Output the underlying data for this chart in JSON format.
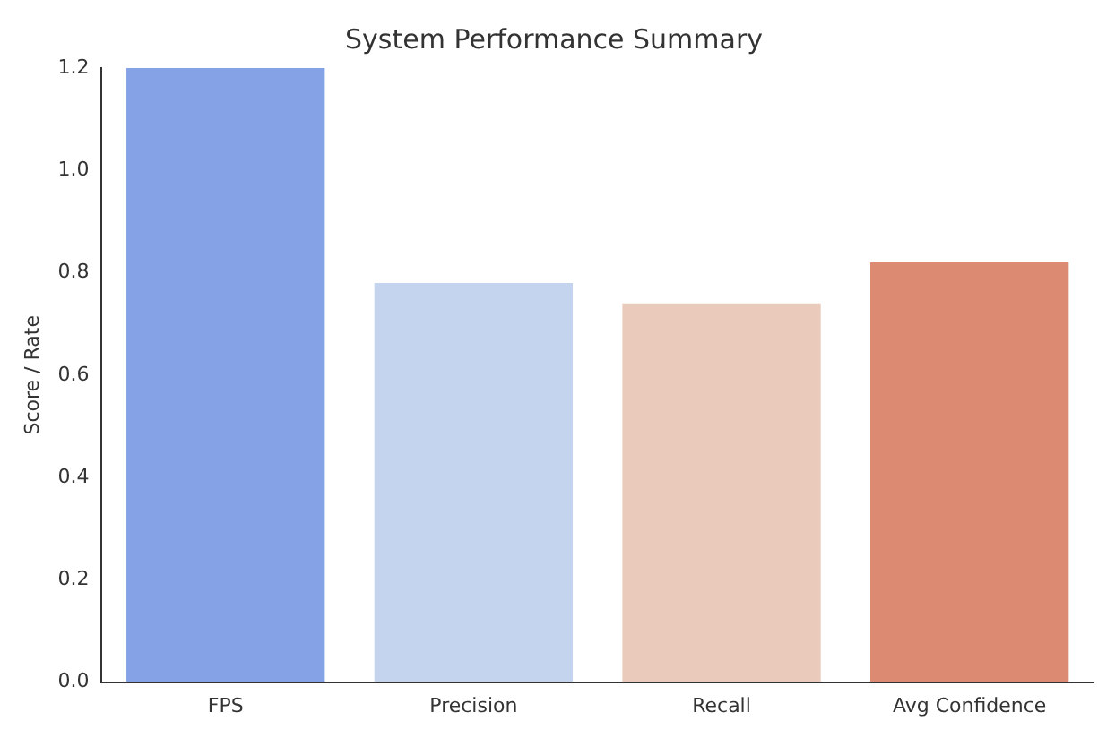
{
  "chart_data": {
    "type": "bar",
    "title": "System Performance Summary",
    "ylabel": "Score / Rate",
    "categories": [
      "FPS",
      "Precision",
      "Recall",
      "Avg Confidence"
    ],
    "values": [
      1.2,
      0.78,
      0.74,
      0.82
    ],
    "colors": [
      "#86a2e6",
      "#c5d4ee",
      "#e9cabb",
      "#dc8a72"
    ],
    "ylim": [
      0,
      1.2
    ],
    "yticks": [
      {
        "value": 0,
        "label": "0.0"
      },
      0.2,
      0.4,
      0.6,
      0.8,
      {
        "value": 1,
        "label": "1.0"
      },
      1.2
    ],
    "grid": false,
    "legend": false
  }
}
